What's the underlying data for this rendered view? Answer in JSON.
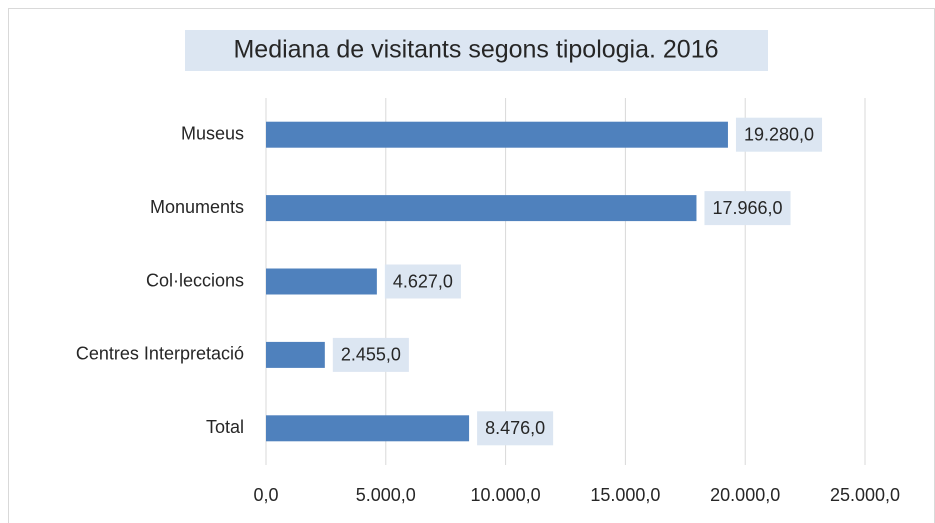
{
  "chart_data": {
    "type": "bar",
    "orientation": "horizontal",
    "title": "Mediana de visitants segons tipologia. 2016",
    "categories": [
      "Museus",
      "Monuments",
      "Col·leccions",
      "Centres Interpretació",
      "Total"
    ],
    "values": [
      19280,
      17966,
      4627,
      2455,
      8476
    ],
    "value_labels": [
      "19.280,0",
      "17.966,0",
      "4.627,0",
      "2.455,0",
      "8.476,0"
    ],
    "color": "#4f81bd",
    "xlim": [
      0,
      25000
    ],
    "xticks": [
      {
        "value": 0,
        "label": "0,0"
      },
      {
        "value": 5000,
        "label": "5.000,0"
      },
      {
        "value": 10000,
        "label": "10.000,0"
      },
      {
        "value": 15000,
        "label": "15.000,0"
      },
      {
        "value": 20000,
        "label": "20.000,0"
      },
      {
        "value": 25000,
        "label": "25.000,0"
      }
    ],
    "grid": true
  }
}
